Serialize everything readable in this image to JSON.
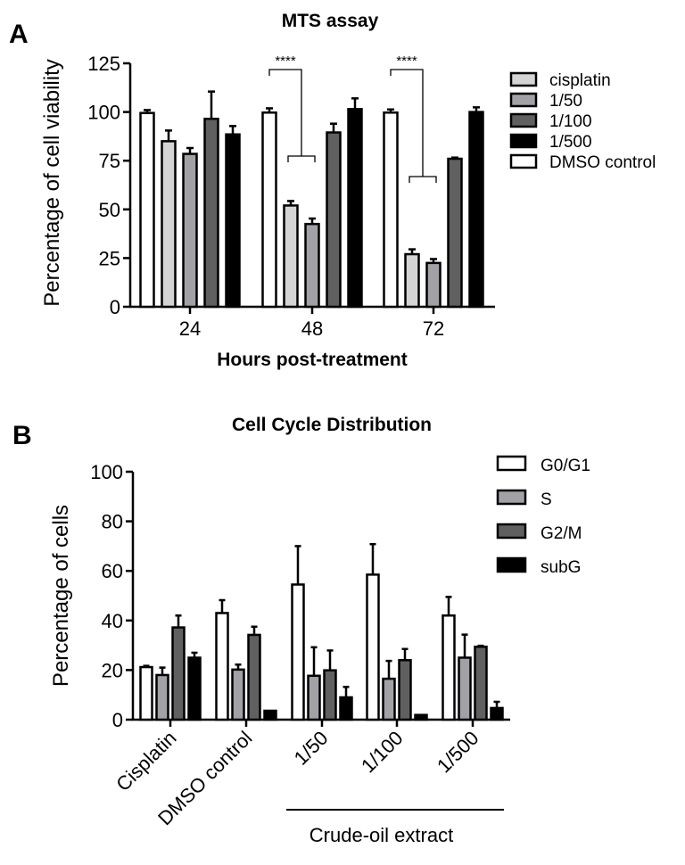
{
  "chart_data": [
    {
      "panel": "A",
      "type": "bar",
      "title": "MTS assay",
      "xlabel": "Hours post-treatment",
      "ylabel": "Percentage of cell viability",
      "ylim": [
        0,
        125
      ],
      "yticks": [
        0,
        25,
        50,
        75,
        100,
        125
      ],
      "categories": [
        "24",
        "48",
        "72"
      ],
      "legend_position": "right",
      "legend": [
        "cisplatin",
        "1/50",
        "1/100",
        "1/500",
        "DMSO control"
      ],
      "series": [
        {
          "name": "DMSO control",
          "color": "#ffffff",
          "values": [
            99.5,
            99.7,
            99.7
          ],
          "errors": [
            1.5,
            2.2,
            1.6
          ]
        },
        {
          "name": "cisplatin",
          "color": "#d4d4d4",
          "values": [
            85,
            52,
            27
          ],
          "errors": [
            5.5,
            2.3,
            2.5
          ]
        },
        {
          "name": "1/50",
          "color": "#a2a2a6",
          "values": [
            78.5,
            42.5,
            22.5
          ],
          "errors": [
            3,
            2.8,
            2
          ]
        },
        {
          "name": "1/100",
          "color": "#606060",
          "values": [
            96.5,
            89.5,
            76
          ],
          "errors": [
            14,
            4.5,
            0.6
          ]
        },
        {
          "name": "1/500",
          "color": "#000000",
          "values": [
            88.5,
            101.5,
            100
          ],
          "errors": [
            4.3,
            5.5,
            2.4
          ]
        }
      ],
      "annotations": [
        {
          "text": "****",
          "group": "48",
          "compare": [
            "DMSO control",
            "cisplatin + 1/50"
          ]
        },
        {
          "text": "****",
          "group": "72",
          "compare": [
            "DMSO control",
            "cisplatin + 1/50"
          ]
        }
      ]
    },
    {
      "panel": "B",
      "type": "bar",
      "title": "Cell Cycle Distribution",
      "xlabel": "",
      "ylabel": "Percentage of cells",
      "ylim": [
        0,
        100
      ],
      "yticks": [
        0,
        20,
        40,
        60,
        80,
        100
      ],
      "categories": [
        "Cisplatin",
        "DMSO control",
        "1/50",
        "1/100",
        "1/500"
      ],
      "group_label": {
        "text": "Crude-oil extract",
        "spans": [
          "1/50",
          "1/100",
          "1/500"
        ]
      },
      "legend_position": "top-right",
      "legend": [
        "G0/G1",
        "S",
        "G2/M",
        "subG"
      ],
      "series": [
        {
          "name": "G0/G1",
          "color": "#ffffff",
          "values": [
            21.2,
            43,
            54.5,
            58.5,
            42
          ],
          "errors": [
            0.5,
            5.2,
            15.5,
            12.3,
            7.5
          ]
        },
        {
          "name": "S",
          "color": "#a2a2a6",
          "values": [
            18,
            20.2,
            17.7,
            16.5,
            25
          ],
          "errors": [
            3,
            2,
            11.5,
            7.2,
            9.3
          ]
        },
        {
          "name": "G2/M",
          "color": "#606060",
          "values": [
            37.2,
            34.2,
            19.9,
            24,
            29.4
          ],
          "errors": [
            4.8,
            3.3,
            8,
            4.5,
            0.4
          ]
        },
        {
          "name": "subG",
          "color": "#000000",
          "values": [
            25,
            3.6,
            9,
            1.9,
            4.7
          ],
          "errors": [
            2,
            0.2,
            4.2,
            0,
            2.5
          ]
        }
      ]
    }
  ],
  "panels": {
    "a_letter": "A",
    "b_letter": "B"
  }
}
